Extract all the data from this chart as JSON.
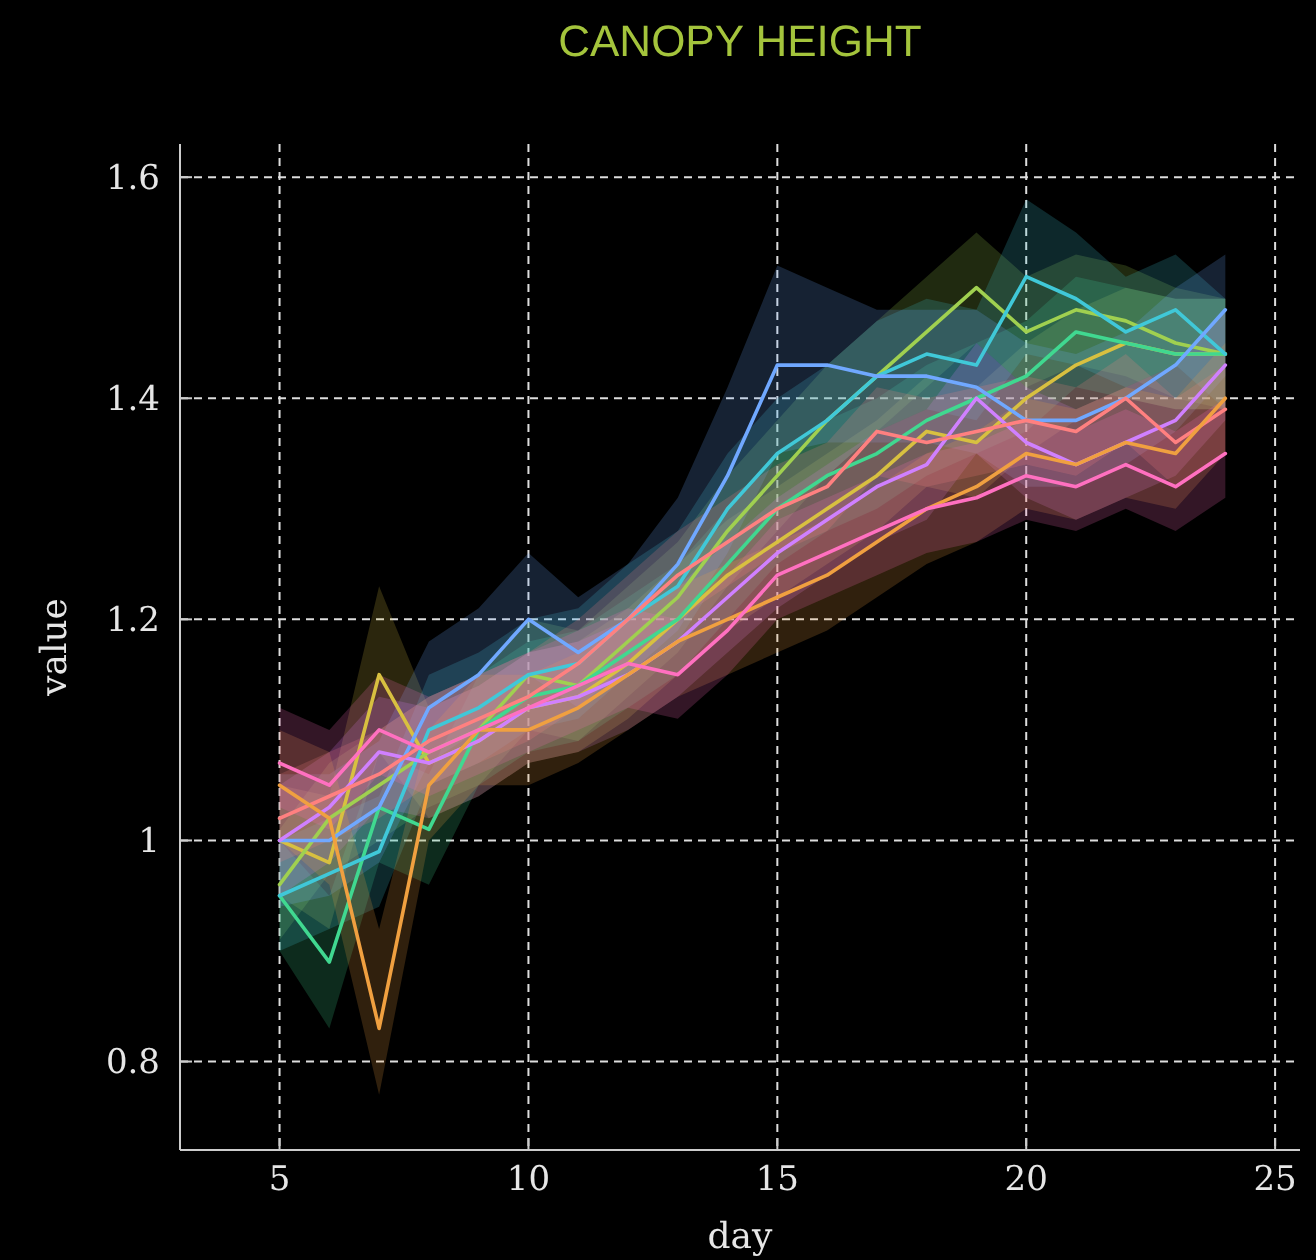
{
  "chart_data": {
    "type": "line",
    "title": "CANOPY HEIGHT",
    "xlabel": "day",
    "ylabel": "value",
    "x": [
      5,
      6,
      7,
      8,
      9,
      10,
      11,
      12,
      13,
      14,
      15,
      16,
      17,
      18,
      19,
      20,
      21,
      22,
      23,
      24
    ],
    "xlim": [
      3,
      25.5
    ],
    "xticks": [
      5,
      10,
      15,
      20,
      25
    ],
    "ylim": [
      0.72,
      1.63
    ],
    "yticks": [
      0.8,
      1.0,
      1.2,
      1.4,
      1.6
    ],
    "grid": true,
    "series": [
      {
        "color": "#d8c040",
        "values": [
          1.0,
          0.98,
          1.15,
          1.07,
          1.09,
          1.12,
          1.13,
          1.16,
          1.2,
          1.24,
          1.27,
          1.3,
          1.33,
          1.37,
          1.36,
          1.4,
          1.43,
          1.45,
          1.44,
          1.44
        ],
        "lower": [
          0.95,
          0.92,
          1.08,
          1.02,
          1.04,
          1.07,
          1.08,
          1.11,
          1.15,
          1.19,
          1.22,
          1.25,
          1.28,
          1.32,
          1.31,
          1.35,
          1.38,
          1.4,
          1.39,
          1.39
        ],
        "upper": [
          1.05,
          1.04,
          1.23,
          1.12,
          1.14,
          1.17,
          1.18,
          1.21,
          1.25,
          1.29,
          1.32,
          1.35,
          1.38,
          1.42,
          1.41,
          1.45,
          1.48,
          1.5,
          1.49,
          1.49
        ]
      },
      {
        "color": "#a0d050",
        "values": [
          0.96,
          1.02,
          1.05,
          1.08,
          1.1,
          1.15,
          1.14,
          1.18,
          1.22,
          1.28,
          1.33,
          1.38,
          1.42,
          1.46,
          1.5,
          1.46,
          1.48,
          1.47,
          1.45,
          1.44
        ],
        "lower": [
          0.91,
          0.97,
          1.0,
          1.03,
          1.05,
          1.1,
          1.09,
          1.13,
          1.17,
          1.23,
          1.28,
          1.33,
          1.37,
          1.41,
          1.45,
          1.41,
          1.43,
          1.42,
          1.4,
          1.39
        ],
        "upper": [
          1.01,
          1.07,
          1.1,
          1.13,
          1.15,
          1.2,
          1.19,
          1.23,
          1.27,
          1.33,
          1.38,
          1.43,
          1.47,
          1.51,
          1.55,
          1.51,
          1.53,
          1.52,
          1.5,
          1.49
        ]
      },
      {
        "color": "#40d890",
        "values": [
          0.95,
          0.89,
          1.03,
          1.01,
          1.1,
          1.13,
          1.14,
          1.17,
          1.2,
          1.25,
          1.3,
          1.33,
          1.35,
          1.38,
          1.4,
          1.42,
          1.46,
          1.45,
          1.44,
          1.44
        ],
        "lower": [
          0.9,
          0.83,
          0.98,
          0.96,
          1.05,
          1.08,
          1.09,
          1.12,
          1.15,
          1.2,
          1.25,
          1.28,
          1.3,
          1.33,
          1.35,
          1.37,
          1.41,
          1.4,
          1.39,
          1.39
        ],
        "upper": [
          1.0,
          0.95,
          1.08,
          1.06,
          1.15,
          1.18,
          1.19,
          1.22,
          1.25,
          1.3,
          1.35,
          1.38,
          1.4,
          1.43,
          1.45,
          1.47,
          1.51,
          1.5,
          1.49,
          1.49
        ]
      },
      {
        "color": "#40c8d8",
        "values": [
          0.95,
          0.97,
          0.99,
          1.1,
          1.12,
          1.15,
          1.16,
          1.2,
          1.23,
          1.3,
          1.35,
          1.38,
          1.42,
          1.44,
          1.43,
          1.51,
          1.49,
          1.46,
          1.48,
          1.44
        ],
        "lower": [
          0.9,
          0.92,
          0.94,
          1.05,
          1.07,
          1.1,
          1.11,
          1.15,
          1.18,
          1.25,
          1.3,
          1.33,
          1.37,
          1.39,
          1.38,
          1.44,
          1.43,
          1.41,
          1.43,
          1.39
        ],
        "upper": [
          1.0,
          1.02,
          1.04,
          1.15,
          1.17,
          1.2,
          1.21,
          1.25,
          1.28,
          1.35,
          1.4,
          1.43,
          1.47,
          1.49,
          1.48,
          1.58,
          1.55,
          1.51,
          1.53,
          1.49
        ]
      },
      {
        "color": "#70a8ff",
        "values": [
          1.0,
          1.0,
          1.03,
          1.12,
          1.15,
          1.2,
          1.17,
          1.2,
          1.25,
          1.33,
          1.43,
          1.43,
          1.42,
          1.42,
          1.41,
          1.38,
          1.38,
          1.4,
          1.43,
          1.48
        ],
        "lower": [
          0.94,
          0.95,
          0.98,
          1.07,
          1.1,
          1.15,
          1.12,
          1.15,
          1.19,
          1.26,
          1.35,
          1.36,
          1.36,
          1.36,
          1.35,
          1.32,
          1.32,
          1.34,
          1.37,
          1.42
        ],
        "upper": [
          1.06,
          1.06,
          1.09,
          1.18,
          1.21,
          1.26,
          1.22,
          1.25,
          1.31,
          1.41,
          1.52,
          1.5,
          1.48,
          1.48,
          1.48,
          1.45,
          1.44,
          1.46,
          1.5,
          1.53
        ]
      },
      {
        "color": "#d080ff",
        "values": [
          1.0,
          1.03,
          1.08,
          1.07,
          1.09,
          1.12,
          1.13,
          1.15,
          1.18,
          1.22,
          1.26,
          1.29,
          1.32,
          1.34,
          1.4,
          1.36,
          1.34,
          1.36,
          1.38,
          1.43
        ],
        "lower": [
          0.95,
          0.98,
          1.03,
          1.02,
          1.04,
          1.07,
          1.08,
          1.1,
          1.13,
          1.17,
          1.21,
          1.24,
          1.27,
          1.29,
          1.35,
          1.31,
          1.29,
          1.31,
          1.33,
          1.38
        ],
        "upper": [
          1.05,
          1.08,
          1.13,
          1.12,
          1.14,
          1.17,
          1.18,
          1.2,
          1.23,
          1.27,
          1.31,
          1.34,
          1.37,
          1.39,
          1.45,
          1.41,
          1.39,
          1.41,
          1.43,
          1.48
        ]
      },
      {
        "color": "#ff8080",
        "values": [
          1.02,
          1.04,
          1.06,
          1.09,
          1.11,
          1.13,
          1.16,
          1.2,
          1.24,
          1.27,
          1.3,
          1.32,
          1.37,
          1.36,
          1.37,
          1.38,
          1.37,
          1.4,
          1.36,
          1.39
        ],
        "lower": [
          0.98,
          1.0,
          1.02,
          1.05,
          1.07,
          1.09,
          1.12,
          1.16,
          1.2,
          1.23,
          1.26,
          1.28,
          1.33,
          1.32,
          1.33,
          1.34,
          1.33,
          1.36,
          1.32,
          1.35
        ],
        "upper": [
          1.06,
          1.08,
          1.1,
          1.13,
          1.15,
          1.17,
          1.2,
          1.24,
          1.28,
          1.31,
          1.34,
          1.36,
          1.41,
          1.4,
          1.41,
          1.42,
          1.41,
          1.44,
          1.4,
          1.43
        ]
      },
      {
        "color": "#f0a040",
        "values": [
          1.05,
          1.02,
          0.83,
          1.05,
          1.1,
          1.1,
          1.12,
          1.15,
          1.18,
          1.2,
          1.22,
          1.24,
          1.27,
          1.3,
          1.32,
          1.35,
          1.34,
          1.36,
          1.35,
          1.4
        ],
        "lower": [
          1.0,
          0.96,
          0.77,
          1.0,
          1.05,
          1.05,
          1.07,
          1.1,
          1.13,
          1.15,
          1.17,
          1.19,
          1.22,
          1.25,
          1.27,
          1.3,
          1.29,
          1.31,
          1.3,
          1.35
        ],
        "upper": [
          1.1,
          1.08,
          0.92,
          1.1,
          1.15,
          1.15,
          1.17,
          1.2,
          1.23,
          1.25,
          1.27,
          1.29,
          1.32,
          1.35,
          1.37,
          1.4,
          1.39,
          1.41,
          1.4,
          1.45
        ]
      },
      {
        "color": "#ff70c0",
        "values": [
          1.07,
          1.05,
          1.1,
          1.08,
          1.1,
          1.12,
          1.14,
          1.16,
          1.15,
          1.19,
          1.24,
          1.26,
          1.28,
          1.3,
          1.31,
          1.33,
          1.32,
          1.34,
          1.32,
          1.35
        ],
        "lower": [
          1.03,
          1.01,
          1.06,
          1.04,
          1.06,
          1.08,
          1.1,
          1.12,
          1.11,
          1.15,
          1.2,
          1.22,
          1.24,
          1.26,
          1.27,
          1.29,
          1.28,
          1.3,
          1.28,
          1.31
        ],
        "upper": [
          1.12,
          1.1,
          1.15,
          1.13,
          1.15,
          1.17,
          1.19,
          1.21,
          1.2,
          1.24,
          1.29,
          1.31,
          1.33,
          1.35,
          1.36,
          1.38,
          1.37,
          1.39,
          1.37,
          1.4
        ]
      }
    ]
  }
}
